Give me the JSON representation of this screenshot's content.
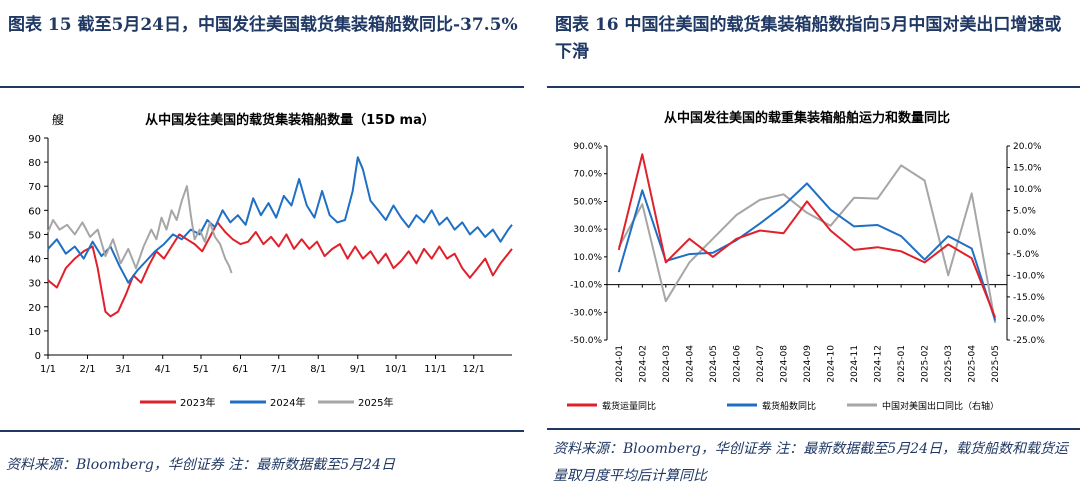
{
  "left": {
    "figure_title": "图表 15 截至5月24日，中国发往美国载货集装箱船数同比-37.5%",
    "source": "资料来源：Bloomberg，华创证券  注：最新数据截至5月24日"
  },
  "right": {
    "figure_title": "图表 16 中国往美国的载货集装箱船数指向5月中国对美出口增速或下滑",
    "source": "资料来源：Bloomberg，华创证券  注：最新数据截至5月24日，载货船数和载货运量取月度平均后计算同比"
  },
  "chart_data": [
    {
      "type": "line",
      "title": "从中国发往美国的载货集装箱船数量（15D ma）",
      "ylabel": "艘",
      "ylim": [
        0,
        90
      ],
      "yticks": [
        "0",
        "10",
        "20",
        "30",
        "40",
        "50",
        "60",
        "70",
        "80",
        "90"
      ],
      "xticks": [
        "1/1",
        "2/1",
        "3/1",
        "4/1",
        "5/1",
        "6/1",
        "7/1",
        "8/1",
        "9/1",
        "10/1",
        "11/1",
        "12/1"
      ],
      "x_day_of_year": [
        1,
        32,
        60,
        91,
        121,
        152,
        182,
        213,
        244,
        274,
        305,
        335
      ],
      "grid": false,
      "legend_position": "bottom",
      "colors": {
        "2023年": "#e0202a",
        "2024年": "#1f6fc4",
        "2025年": "#a6a6a6"
      },
      "series": [
        {
          "name": "2023年",
          "points": [
            [
              1,
              31
            ],
            [
              8,
              28
            ],
            [
              15,
              36
            ],
            [
              22,
              40
            ],
            [
              29,
              43
            ],
            [
              36,
              45
            ],
            [
              40,
              36
            ],
            [
              43,
              27
            ],
            [
              46,
              18
            ],
            [
              50,
              16
            ],
            [
              56,
              18
            ],
            [
              62,
              25
            ],
            [
              68,
              33
            ],
            [
              74,
              30
            ],
            [
              80,
              37
            ],
            [
              86,
              43
            ],
            [
              92,
              40
            ],
            [
              98,
              45
            ],
            [
              104,
              50
            ],
            [
              110,
              48
            ],
            [
              116,
              46
            ],
            [
              122,
              43
            ],
            [
              128,
              49
            ],
            [
              134,
              55
            ],
            [
              140,
              51
            ],
            [
              146,
              48
            ],
            [
              152,
              46
            ],
            [
              158,
              47
            ],
            [
              164,
              51
            ],
            [
              170,
              46
            ],
            [
              176,
              49
            ],
            [
              182,
              45
            ],
            [
              188,
              50
            ],
            [
              194,
              44
            ],
            [
              200,
              48
            ],
            [
              206,
              44
            ],
            [
              212,
              47
            ],
            [
              218,
              41
            ],
            [
              224,
              44
            ],
            [
              230,
              46
            ],
            [
              236,
              40
            ],
            [
              242,
              45
            ],
            [
              248,
              40
            ],
            [
              254,
              43
            ],
            [
              260,
              38
            ],
            [
              266,
              42
            ],
            [
              272,
              36
            ],
            [
              278,
              39
            ],
            [
              284,
              43
            ],
            [
              290,
              38
            ],
            [
              296,
              44
            ],
            [
              302,
              40
            ],
            [
              308,
              45
            ],
            [
              314,
              40
            ],
            [
              320,
              42
            ],
            [
              326,
              36
            ],
            [
              332,
              32
            ],
            [
              338,
              36
            ],
            [
              344,
              40
            ],
            [
              350,
              33
            ],
            [
              356,
              38
            ],
            [
              362,
              42
            ],
            [
              365,
              44
            ]
          ]
        },
        {
          "name": "2024年",
          "points": [
            [
              1,
              44
            ],
            [
              8,
              48
            ],
            [
              15,
              42
            ],
            [
              22,
              45
            ],
            [
              29,
              40
            ],
            [
              36,
              47
            ],
            [
              43,
              41
            ],
            [
              50,
              45
            ],
            [
              57,
              37
            ],
            [
              64,
              30
            ],
            [
              71,
              35
            ],
            [
              78,
              39
            ],
            [
              85,
              43
            ],
            [
              92,
              46
            ],
            [
              99,
              50
            ],
            [
              106,
              48
            ],
            [
              113,
              52
            ],
            [
              120,
              50
            ],
            [
              126,
              56
            ],
            [
              132,
              53
            ],
            [
              138,
              60
            ],
            [
              144,
              55
            ],
            [
              150,
              58
            ],
            [
              156,
              54
            ],
            [
              162,
              65
            ],
            [
              168,
              58
            ],
            [
              174,
              63
            ],
            [
              180,
              57
            ],
            [
              186,
              66
            ],
            [
              192,
              62
            ],
            [
              198,
              73
            ],
            [
              204,
              62
            ],
            [
              210,
              57
            ],
            [
              216,
              68
            ],
            [
              222,
              58
            ],
            [
              228,
              55
            ],
            [
              234,
              56
            ],
            [
              240,
              68
            ],
            [
              244,
              82
            ],
            [
              248,
              77
            ],
            [
              254,
              64
            ],
            [
              260,
              60
            ],
            [
              266,
              56
            ],
            [
              272,
              62
            ],
            [
              278,
              57
            ],
            [
              284,
              53
            ],
            [
              290,
              58
            ],
            [
              296,
              55
            ],
            [
              302,
              60
            ],
            [
              308,
              54
            ],
            [
              314,
              57
            ],
            [
              320,
              52
            ],
            [
              326,
              55
            ],
            [
              332,
              50
            ],
            [
              338,
              53
            ],
            [
              344,
              49
            ],
            [
              350,
              52
            ],
            [
              356,
              47
            ],
            [
              362,
              52
            ],
            [
              365,
              54
            ]
          ]
        },
        {
          "name": "2025年",
          "points": [
            [
              1,
              51
            ],
            [
              5,
              56
            ],
            [
              10,
              52
            ],
            [
              16,
              54
            ],
            [
              22,
              50
            ],
            [
              28,
              55
            ],
            [
              34,
              49
            ],
            [
              40,
              52
            ],
            [
              46,
              41
            ],
            [
              52,
              48
            ],
            [
              58,
              38
            ],
            [
              64,
              44
            ],
            [
              70,
              36
            ],
            [
              76,
              45
            ],
            [
              82,
              52
            ],
            [
              86,
              48
            ],
            [
              90,
              57
            ],
            [
              94,
              52
            ],
            [
              98,
              60
            ],
            [
              102,
              56
            ],
            [
              106,
              64
            ],
            [
              110,
              70
            ],
            [
              113,
              58
            ],
            [
              116,
              48
            ],
            [
              120,
              52
            ],
            [
              124,
              47
            ],
            [
              128,
              55
            ],
            [
              132,
              49
            ],
            [
              136,
              46
            ],
            [
              140,
              40
            ],
            [
              143,
              37
            ],
            [
              145,
              34
            ]
          ]
        }
      ]
    },
    {
      "type": "line",
      "title": "从中国发往美国的载重集装箱船舶运力和数量同比",
      "categories": [
        "2024-01",
        "2024-02",
        "2024-03",
        "2024-04",
        "2024-05",
        "2024-06",
        "2024-07",
        "2024-08",
        "2024-09",
        "2024-10",
        "2024-11",
        "2024-12",
        "2025-01",
        "2025-02",
        "2025-03",
        "2025-04",
        "2025-05"
      ],
      "ylim_left": [
        -50,
        90
      ],
      "ylim_right": [
        -25,
        20
      ],
      "yticks_left": [
        "90.0%",
        "70.0%",
        "50.0%",
        "30.0%",
        "10.0%",
        "-10.0%",
        "-30.0%",
        "-50.0%"
      ],
      "yticks_right": [
        "20.0%",
        "15.0%",
        "10.0%",
        "5.0%",
        "0.0%",
        "-5.0%",
        "-10.0%",
        "-15.0%",
        "-20.0%",
        "-25.0%"
      ],
      "legend_position": "bottom",
      "colors": {
        "载货运量同比": "#e0202a",
        "载货船数同比": "#1f6fc4",
        "中国对美国出口同比（右轴）": "#a6a6a6"
      },
      "series": [
        {
          "name": "载货运量同比",
          "axis": "left",
          "values": [
            15,
            84,
            6,
            23,
            10,
            23,
            29,
            27,
            50,
            29,
            15,
            17,
            14,
            6,
            19,
            9,
            -34
          ]
        },
        {
          "name": "载货船数同比",
          "axis": "left",
          "values": [
            -1,
            58,
            7,
            12,
            13,
            22,
            34,
            47,
            63,
            44,
            32,
            33,
            25,
            8,
            25,
            16,
            -36
          ]
        },
        {
          "name": "中国对美国出口同比（右轴）",
          "axis": "right",
          "values": [
            -3.5,
            6.5,
            -16,
            -7,
            -1.5,
            4,
            7.5,
            8.8,
            4.5,
            1.5,
            8.0,
            7.8,
            15.5,
            12,
            -10,
            9,
            -21
          ]
        }
      ]
    }
  ]
}
